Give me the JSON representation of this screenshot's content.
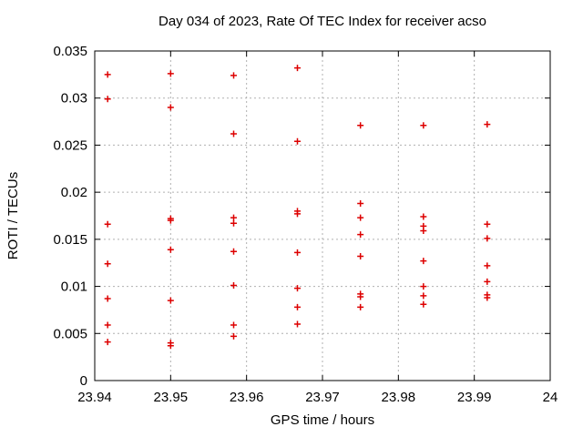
{
  "page": {
    "background": "#ffffff"
  },
  "chart_data": {
    "type": "scatter",
    "title": "Day 034 of 2023, Rate Of TEC Index for receiver acso",
    "xlabel": "GPS time / hours",
    "ylabel": "ROTI / TECUs",
    "xlim": [
      23.94,
      24
    ],
    "ylim": [
      0,
      0.035
    ],
    "xticks": [
      {
        "value": 23.94,
        "label": "23.94"
      },
      {
        "value": 23.95,
        "label": "23.95"
      },
      {
        "value": 23.96,
        "label": "23.96"
      },
      {
        "value": 23.97,
        "label": "23.97"
      },
      {
        "value": 23.98,
        "label": "23.98"
      },
      {
        "value": 23.99,
        "label": "23.99"
      },
      {
        "value": 24,
        "label": "24"
      }
    ],
    "yticks": [
      {
        "value": 0,
        "label": "0"
      },
      {
        "value": 0.005,
        "label": "0.005"
      },
      {
        "value": 0.01,
        "label": "0.01"
      },
      {
        "value": 0.015,
        "label": "0.015"
      },
      {
        "value": 0.02,
        "label": "0.02"
      },
      {
        "value": 0.025,
        "label": "0.025"
      },
      {
        "value": 0.03,
        "label": "0.03"
      },
      {
        "value": 0.035,
        "label": "0.035"
      }
    ],
    "grid": "dashed",
    "legend": "none",
    "marker": "plus",
    "colors": {
      "marker": "#dd0000",
      "grid": "#b0b0b0",
      "axis": "#000000",
      "text": "#000000"
    },
    "series": [
      {
        "name": "ROTI",
        "points": [
          [
            23.9417,
            0.0325
          ],
          [
            23.9417,
            0.0299
          ],
          [
            23.9417,
            0.0166
          ],
          [
            23.9417,
            0.0124
          ],
          [
            23.9417,
            0.0087
          ],
          [
            23.9417,
            0.0059
          ],
          [
            23.9417,
            0.0041
          ],
          [
            23.95,
            0.0326
          ],
          [
            23.95,
            0.029
          ],
          [
            23.95,
            0.0172
          ],
          [
            23.95,
            0.017
          ],
          [
            23.95,
            0.0139
          ],
          [
            23.95,
            0.0085
          ],
          [
            23.95,
            0.004
          ],
          [
            23.95,
            0.0037
          ],
          [
            23.9583,
            0.0324
          ],
          [
            23.9583,
            0.0262
          ],
          [
            23.9583,
            0.0173
          ],
          [
            23.9583,
            0.0167
          ],
          [
            23.9583,
            0.0137
          ],
          [
            23.9583,
            0.0101
          ],
          [
            23.9583,
            0.0059
          ],
          [
            23.9583,
            0.0047
          ],
          [
            23.9667,
            0.0332
          ],
          [
            23.9667,
            0.0254
          ],
          [
            23.9667,
            0.018
          ],
          [
            23.9667,
            0.0177
          ],
          [
            23.9667,
            0.0136
          ],
          [
            23.9667,
            0.0098
          ],
          [
            23.9667,
            0.0078
          ],
          [
            23.9667,
            0.006
          ],
          [
            23.975,
            0.0271
          ],
          [
            23.975,
            0.0188
          ],
          [
            23.975,
            0.0173
          ],
          [
            23.975,
            0.0155
          ],
          [
            23.975,
            0.0132
          ],
          [
            23.975,
            0.0092
          ],
          [
            23.975,
            0.0089
          ],
          [
            23.975,
            0.0078
          ],
          [
            23.9833,
            0.0271
          ],
          [
            23.9833,
            0.0174
          ],
          [
            23.9833,
            0.0164
          ],
          [
            23.9833,
            0.0159
          ],
          [
            23.9833,
            0.0127
          ],
          [
            23.9833,
            0.01
          ],
          [
            23.9833,
            0.009
          ],
          [
            23.9833,
            0.0081
          ],
          [
            23.9917,
            0.0272
          ],
          [
            23.9917,
            0.0166
          ],
          [
            23.9917,
            0.0151
          ],
          [
            23.9917,
            0.0122
          ],
          [
            23.9917,
            0.0105
          ],
          [
            23.9917,
            0.0091
          ],
          [
            23.9917,
            0.0088
          ]
        ]
      }
    ]
  }
}
